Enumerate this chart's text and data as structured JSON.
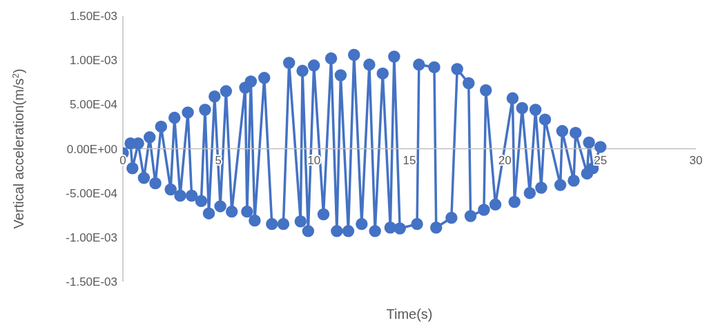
{
  "chart_data": {
    "type": "line",
    "xlabel": "Time(s)",
    "ylabel": "Vertical acceleration(m/s$^{2}$)",
    "xlim": [
      0,
      30
    ],
    "xticks": [
      0,
      5,
      10,
      15,
      20,
      25,
      30
    ],
    "ylim": [
      -0.0015,
      0.0015
    ],
    "yticks": [
      {
        "value": -0.0015,
        "label": "-1.50E-03"
      },
      {
        "value": -0.001,
        "label": "-1.00E-03"
      },
      {
        "value": -0.0005,
        "label": "-5.00E-04"
      },
      {
        "value": 0,
        "label": "0.00E+00"
      },
      {
        "value": 0.0005,
        "label": "5.00E-04"
      },
      {
        "value": 0.001,
        "label": "1.00E-03"
      },
      {
        "value": 0.0015,
        "label": "1.50E-03"
      }
    ],
    "grid": false,
    "legend": false,
    "marker": "circle",
    "line_style": "solid",
    "series": [
      {
        "color": "#4472c4",
        "x": [
          0,
          0.4,
          0.5,
          0.8,
          1.1,
          1.4,
          1.7,
          2.0,
          2.5,
          2.7,
          3.0,
          3.4,
          3.6,
          4.1,
          4.3,
          4.5,
          4.8,
          5.1,
          5.4,
          5.7,
          6.4,
          6.5,
          6.7,
          6.9,
          7.4,
          7.8,
          8.4,
          8.7,
          9.3,
          9.4,
          9.7,
          10.0,
          10.5,
          10.9,
          11.2,
          11.4,
          11.8,
          12.1,
          12.5,
          12.9,
          13.2,
          13.6,
          14.0,
          14.2,
          14.5,
          15.4,
          15.5,
          16.3,
          16.4,
          17.2,
          17.5,
          18.1,
          18.2,
          18.9,
          19.0,
          19.5,
          20.4,
          20.5,
          20.9,
          21.3,
          21.6,
          21.9,
          22.1,
          22.9,
          23.0,
          23.6,
          23.7,
          24.3,
          24.4,
          24.6,
          25.0
        ],
        "values": [
          -5e-05,
          6e-05,
          -0.00022,
          6e-05,
          -0.00033,
          0.00013,
          -0.00039,
          0.00025,
          -0.00046,
          0.00035,
          -0.00053,
          0.00041,
          -0.00053,
          -0.00059,
          0.00044,
          -0.00073,
          0.00059,
          -0.00065,
          0.00065,
          -0.00071,
          0.00069,
          -0.00071,
          0.00076,
          -0.00081,
          0.0008,
          -0.00085,
          -0.00085,
          0.00097,
          -0.00082,
          0.00088,
          -0.00093,
          0.00094,
          -0.00074,
          0.00102,
          -0.00093,
          0.00083,
          -0.00093,
          0.00106,
          -0.00085,
          0.00095,
          -0.00093,
          0.00085,
          -0.00089,
          0.00104,
          -0.0009,
          -0.00085,
          0.00095,
          0.00092,
          -0.00089,
          -0.00078,
          0.0009,
          0.00074,
          -0.00076,
          -0.00069,
          0.00066,
          -0.00063,
          0.00057,
          -0.0006,
          0.00046,
          -0.0005,
          0.00044,
          -0.00044,
          0.00033,
          -0.00041,
          0.0002,
          -0.00036,
          0.00018,
          -0.00028,
          7e-05,
          -0.00022,
          2e-05
        ]
      }
    ]
  }
}
